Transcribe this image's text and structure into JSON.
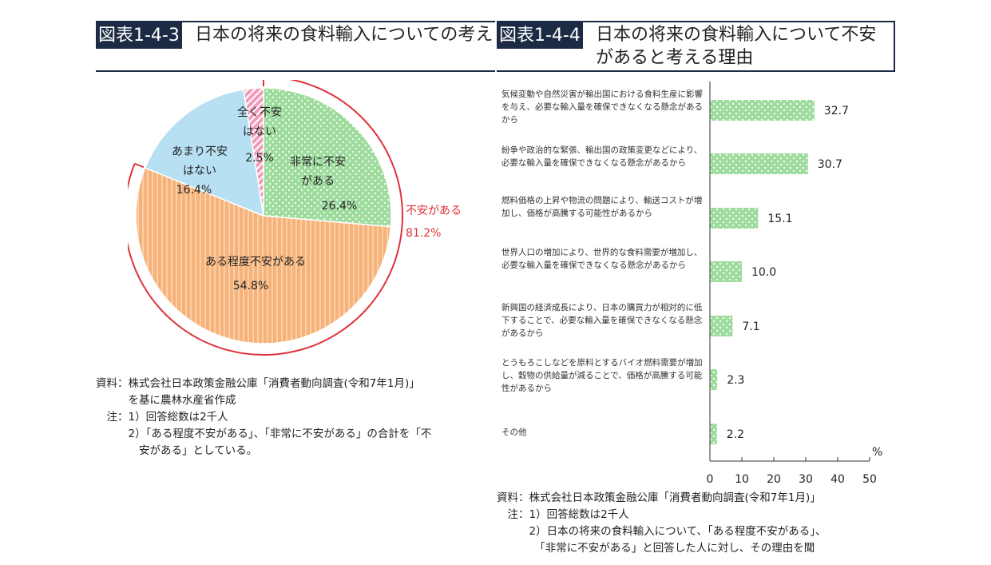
{
  "left": {
    "figure_no": "図表1-4-3",
    "title": "日本の将来の食料輸入についての考え",
    "group_label": "不安がある",
    "group_value": "81.2%",
    "notes": [
      "資料：株式会社日本政策金融公庫「消費者動向調査(令和7年1月)」",
      "　　　を基に農林水産省作成",
      "　注：1）回答総数は2千人",
      "　　　2）「ある程度不安がある」、「非常に不安がある」の合計を「不",
      "　　　　安がある」としている。"
    ]
  },
  "right": {
    "figure_no": "図表1-4-4",
    "title": "日本の将来の食料輸入について不安があると考える理由",
    "unit": "%",
    "notes": [
      "資料：株式会社日本政策金融公庫「消費者動向調査(令和7年1月)」",
      "　注：1）回答総数は2千人",
      "　　　2）日本の将来の食料輸入について、「ある程度不安がある」、",
      "　　　　「非常に不安がある」と回答した人に対し、その理由を聞"
    ]
  },
  "chart_data": [
    {
      "type": "pie",
      "title": "日本の将来の食料輸入についての考え",
      "slices": [
        {
          "label": "非常に不安がある",
          "value": 26.4,
          "value_label": "26.4%",
          "color": "#9edc9e"
        },
        {
          "label": "ある程度不安がある",
          "value": 54.8,
          "value_label": "54.8%",
          "color": "#f6b27a"
        },
        {
          "label": "あまり不安はない",
          "value": 16.4,
          "value_label": "16.4%",
          "color": "#b7e0f2"
        },
        {
          "label": "全く不安はない",
          "value": 2.5,
          "value_label": "2.5%",
          "color": "#f39ab8"
        }
      ],
      "annotation": {
        "label": "不安がある",
        "value": "81.2%",
        "color": "#e0313a"
      }
    },
    {
      "type": "bar",
      "orientation": "horizontal",
      "title": "日本の将来の食料輸入について不安があると考える理由",
      "categories": [
        "気候変動や自然災害が輸出国における食料生産に影響を与え、必要な輸入量を確保できなくなる懸念があるから",
        "紛争や政治的な緊張、輸出国の政策変更などにより、必要な輸入量を確保できなくなる懸念があるから",
        "燃料価格の上昇や物流の問題により、輸送コストが増加し、価格が高騰する可能性があるから",
        "世界人口の増加により、世界的な食料需要が増加し、必要な輸入量を確保できなくなる懸念があるから",
        "新興国の経済成長により、日本の購買力が相対的に低下することで、必要な輸入量を確保できなくなる懸念があるから",
        "とうもろこしなどを原料とするバイオ燃料需要が増加し、穀物の供給量が減ることで、価格が高騰する可能性があるから",
        "その他"
      ],
      "values": [
        32.7,
        30.7,
        15.1,
        10.0,
        7.1,
        2.3,
        2.2
      ],
      "value_labels": [
        "32.7",
        "30.7",
        "15.1",
        "10.0",
        "7.1",
        "2.3",
        "2.2"
      ],
      "xlim": [
        0,
        50
      ],
      "xticks": [
        "0",
        "10",
        "20",
        "30",
        "40",
        "50"
      ],
      "xlabel": "%",
      "color": "#9edc9e"
    }
  ]
}
